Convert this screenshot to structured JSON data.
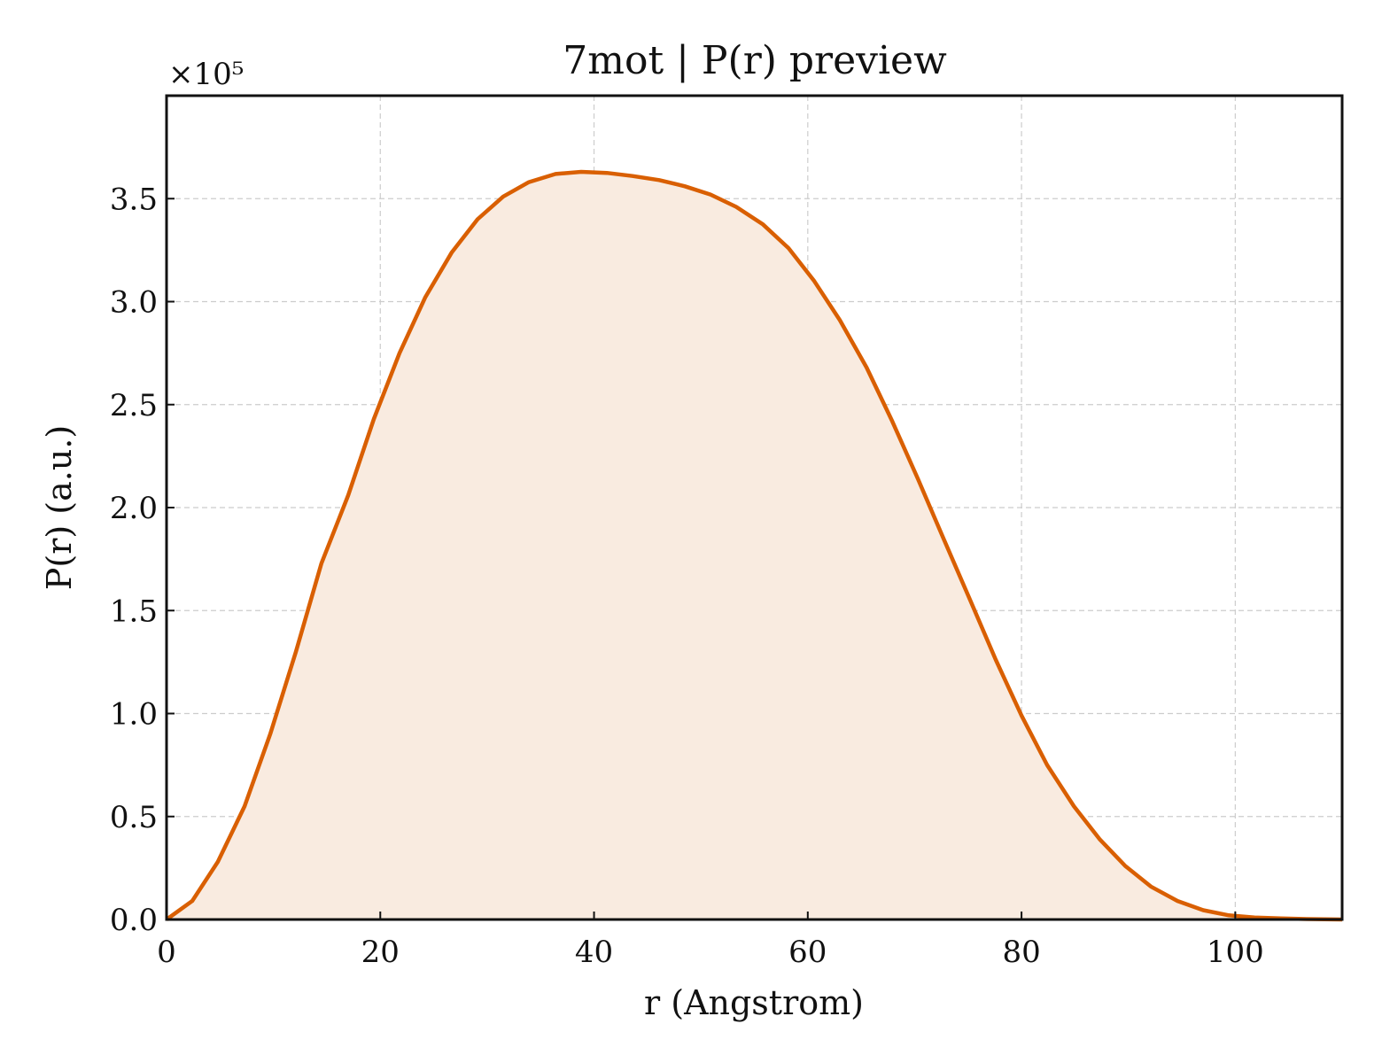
{
  "chart_data": {
    "type": "area",
    "title": "7mot | P(r) preview",
    "xlabel": "r (Angstrom)",
    "ylabel": "P(r) (a.u.)",
    "y_multiplier_label": "×10⁵",
    "xlim": [
      0,
      110
    ],
    "ylim": [
      0,
      4.0
    ],
    "y_scale_factor": 100000,
    "x_ticks": [
      0,
      20,
      40,
      60,
      80,
      100
    ],
    "x_tick_labels": [
      "0",
      "20",
      "40",
      "60",
      "80",
      "100"
    ],
    "y_ticks": [
      0,
      0.5,
      1.0,
      1.5,
      2.0,
      2.5,
      3.0,
      3.5
    ],
    "y_tick_labels": [
      "0.0",
      "0.5",
      "1.0",
      "1.5",
      "2.0",
      "2.5",
      "3.0",
      "3.5"
    ],
    "grid": true,
    "legend": "none",
    "line_color": "#d95f02",
    "fill_color": "#f9ebe0",
    "series": [
      {
        "x": [
          0,
          2.4,
          4.8,
          7.3,
          9.7,
          12.1,
          14.5,
          17.0,
          19.4,
          21.8,
          24.2,
          26.7,
          29.1,
          31.5,
          33.9,
          36.4,
          38.8,
          41.2,
          43.6,
          46.1,
          48.5,
          50.9,
          53.3,
          55.8,
          58.2,
          60.6,
          63.0,
          65.5,
          67.9,
          70.3,
          72.7,
          75.2,
          77.6,
          80.0,
          82.4,
          84.9,
          87.3,
          89.7,
          92.1,
          94.6,
          97.0,
          99.4,
          101.8,
          104.3,
          106.7,
          110.0
        ],
        "values": [
          0.0,
          0.09,
          0.28,
          0.55,
          0.9,
          1.3,
          1.73,
          2.06,
          2.43,
          2.75,
          3.02,
          3.24,
          3.4,
          3.51,
          3.58,
          3.62,
          3.63,
          3.625,
          3.61,
          3.59,
          3.56,
          3.52,
          3.46,
          3.375,
          3.26,
          3.1,
          2.91,
          2.68,
          2.42,
          2.14,
          1.85,
          1.55,
          1.26,
          0.99,
          0.75,
          0.55,
          0.39,
          0.26,
          0.16,
          0.09,
          0.045,
          0.02,
          0.01,
          0.005,
          0.002,
          0.0
        ]
      }
    ]
  }
}
